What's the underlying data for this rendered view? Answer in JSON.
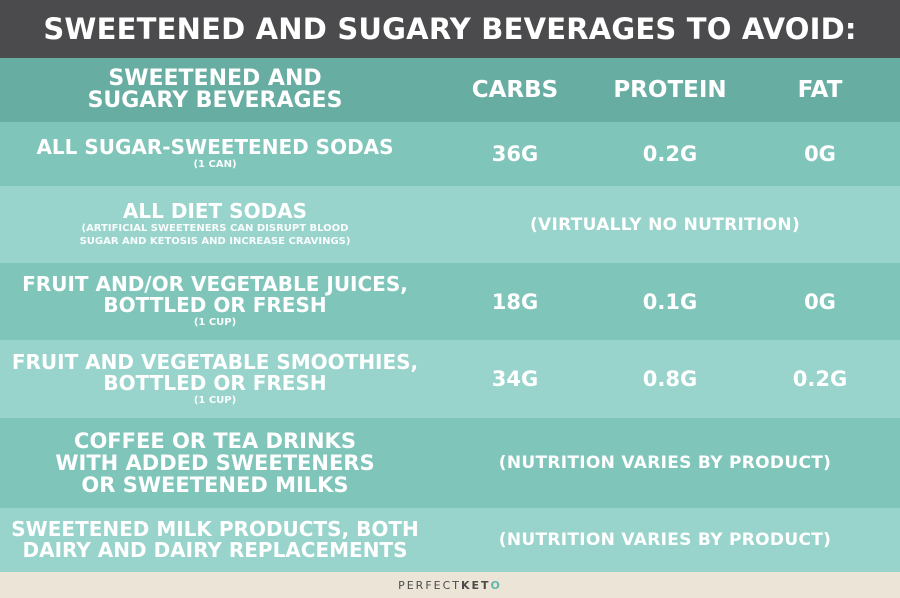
{
  "title": "SWEETENED AND SUGARY BEVERAGES TO AVOID:",
  "header": {
    "name_line1": "SWEETENED AND",
    "name_line2": "SUGARY BEVERAGES",
    "carbs": "CARBS",
    "protein": "PROTEIN",
    "fat": "FAT"
  },
  "rows": [
    {
      "name_lines": [
        "ALL SUGAR-SWEETENED SODAS"
      ],
      "note_lines": [
        "(1 CAN)"
      ],
      "carbs": "36G",
      "protein": "0.2G",
      "fat": "0G"
    },
    {
      "name_lines": [
        "ALL DIET SODAS"
      ],
      "note_lines": [
        "(ARTIFICIAL SWEETENERS CAN DISRUPT BLOOD",
        "SUGAR AND KETOSIS AND INCREASE CRAVINGS)"
      ],
      "span": "(VIRTUALLY NO NUTRITION)"
    },
    {
      "name_lines": [
        "FRUIT AND/OR VEGETABLE JUICES,",
        "BOTTLED OR FRESH"
      ],
      "note_lines": [
        "(1 CUP)"
      ],
      "carbs": "18G",
      "protein": "0.1G",
      "fat": "0G"
    },
    {
      "name_lines": [
        "FRUIT AND VEGETABLE SMOOTHIES,",
        "BOTTLED OR FRESH"
      ],
      "note_lines": [
        "(1 CUP)"
      ],
      "carbs": "34G",
      "protein": "0.8G",
      "fat": "0.2G"
    },
    {
      "name_lines": [
        "COFFEE OR TEA DRINKS",
        "WITH ADDED SWEETENERS",
        "OR SWEETENED MILKS"
      ],
      "note_lines": [],
      "span": "(NUTRITION VARIES BY PRODUCT)"
    },
    {
      "name_lines": [
        "SWEETENED MILK PRODUCTS, BOTH",
        "DAIRY AND DAIRY REPLACEMENTS"
      ],
      "note_lines": [],
      "span": "(NUTRITION VARIES BY PRODUCT)"
    }
  ],
  "footer": {
    "brand_part1": "PERFECT ",
    "brand_part2": "KET",
    "brand_part3": "O"
  },
  "colors": {
    "title_bg": "#4b4b4d",
    "header_bg": "#68ada2",
    "row_dark": "#7fc5ba",
    "row_light": "#98d4cb",
    "footer_bg": "#ede4d8",
    "brand_accent": "#5db8aa"
  }
}
